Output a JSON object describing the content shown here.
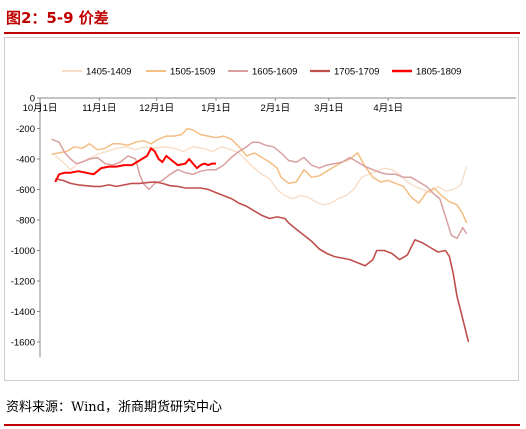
{
  "title": "图2：5-9 价差",
  "source": "资料来源：Wind，浙商期货研究中心",
  "chart_data": {
    "type": "line",
    "title": "图2：5-9 价差",
    "ylim": [
      -1700,
      0
    ],
    "yticks": [
      0,
      -200,
      -400,
      -600,
      -800,
      -1000,
      -1200,
      -1400,
      -1600
    ],
    "ytick_labels": [
      "0",
      "-200",
      "-400",
      "-600",
      "-800",
      "-1000",
      "-1200",
      "-1400",
      "-1600"
    ],
    "x_range": [
      0,
      225
    ],
    "xticks": [
      {
        "label": "10月1日",
        "x": 0
      },
      {
        "label": "11月1日",
        "x": 31
      },
      {
        "label": "12月1日",
        "x": 61
      },
      {
        "label": "1月1日",
        "x": 92
      },
      {
        "label": "2月1日",
        "x": 123
      },
      {
        "label": "3月1日",
        "x": 151
      },
      {
        "label": "4月1日",
        "x": 182
      }
    ],
    "grid": false,
    "legend_position": "top",
    "series": [
      {
        "name": "1405-1409",
        "color": "#f7dcc6",
        "width": 1.3,
        "points": [
          [
            8,
            -380
          ],
          [
            12,
            -420
          ],
          [
            16,
            -470
          ],
          [
            20,
            -430
          ],
          [
            25,
            -400
          ],
          [
            30,
            -370
          ],
          [
            35,
            -350
          ],
          [
            40,
            -330
          ],
          [
            45,
            -320
          ],
          [
            50,
            -340
          ],
          [
            55,
            -320
          ],
          [
            60,
            -330
          ],
          [
            65,
            -320
          ],
          [
            70,
            -330
          ],
          [
            75,
            -350
          ],
          [
            80,
            -320
          ],
          [
            85,
            -330
          ],
          [
            90,
            -350
          ],
          [
            95,
            -320
          ],
          [
            100,
            -340
          ],
          [
            104,
            -360
          ],
          [
            108,
            -410
          ],
          [
            112,
            -460
          ],
          [
            116,
            -500
          ],
          [
            120,
            -530
          ],
          [
            124,
            -600
          ],
          [
            128,
            -640
          ],
          [
            132,
            -660
          ],
          [
            136,
            -640
          ],
          [
            140,
            -650
          ],
          [
            144,
            -680
          ],
          [
            148,
            -700
          ],
          [
            152,
            -690
          ],
          [
            156,
            -660
          ],
          [
            160,
            -640
          ],
          [
            164,
            -600
          ],
          [
            168,
            -520
          ],
          [
            172,
            -500
          ],
          [
            176,
            -480
          ],
          [
            180,
            -460
          ],
          [
            184,
            -470
          ],
          [
            188,
            -500
          ],
          [
            192,
            -550
          ],
          [
            196,
            -580
          ],
          [
            200,
            -600
          ],
          [
            204,
            -620
          ],
          [
            208,
            -580
          ],
          [
            212,
            -610
          ],
          [
            216,
            -600
          ],
          [
            220,
            -570
          ],
          [
            223,
            -450
          ]
        ]
      },
      {
        "name": "1505-1509",
        "color": "#f4be84",
        "width": 1.5,
        "points": [
          [
            6,
            -370
          ],
          [
            10,
            -360
          ],
          [
            14,
            -350
          ],
          [
            18,
            -320
          ],
          [
            22,
            -330
          ],
          [
            26,
            -300
          ],
          [
            30,
            -340
          ],
          [
            34,
            -330
          ],
          [
            38,
            -300
          ],
          [
            42,
            -300
          ],
          [
            46,
            -310
          ],
          [
            50,
            -290
          ],
          [
            54,
            -280
          ],
          [
            58,
            -300
          ],
          [
            62,
            -270
          ],
          [
            66,
            -250
          ],
          [
            70,
            -250
          ],
          [
            74,
            -240
          ],
          [
            77,
            -200
          ],
          [
            80,
            -210
          ],
          [
            84,
            -240
          ],
          [
            88,
            -250
          ],
          [
            92,
            -260
          ],
          [
            96,
            -250
          ],
          [
            100,
            -270
          ],
          [
            104,
            -320
          ],
          [
            108,
            -380
          ],
          [
            112,
            -360
          ],
          [
            116,
            -390
          ],
          [
            120,
            -420
          ],
          [
            124,
            -460
          ],
          [
            126,
            -520
          ],
          [
            130,
            -560
          ],
          [
            134,
            -550
          ],
          [
            138,
            -470
          ],
          [
            142,
            -520
          ],
          [
            146,
            -510
          ],
          [
            150,
            -480
          ],
          [
            154,
            -450
          ],
          [
            158,
            -420
          ],
          [
            162,
            -400
          ],
          [
            166,
            -360
          ],
          [
            170,
            -450
          ],
          [
            174,
            -520
          ],
          [
            178,
            -550
          ],
          [
            182,
            -540
          ],
          [
            186,
            -560
          ],
          [
            190,
            -580
          ],
          [
            194,
            -650
          ],
          [
            198,
            -690
          ],
          [
            202,
            -620
          ],
          [
            206,
            -590
          ],
          [
            210,
            -640
          ],
          [
            214,
            -680
          ],
          [
            218,
            -700
          ],
          [
            221,
            -760
          ],
          [
            223,
            -820
          ]
        ]
      },
      {
        "name": "1605-1609",
        "color": "#d9a0a0",
        "width": 1.5,
        "points": [
          [
            6,
            -270
          ],
          [
            10,
            -290
          ],
          [
            13,
            -360
          ],
          [
            16,
            -400
          ],
          [
            19,
            -430
          ],
          [
            22,
            -420
          ],
          [
            26,
            -400
          ],
          [
            30,
            -390
          ],
          [
            34,
            -430
          ],
          [
            38,
            -440
          ],
          [
            42,
            -420
          ],
          [
            46,
            -380
          ],
          [
            50,
            -400
          ],
          [
            52,
            -500
          ],
          [
            54,
            -560
          ],
          [
            57,
            -600
          ],
          [
            60,
            -560
          ],
          [
            64,
            -540
          ],
          [
            68,
            -500
          ],
          [
            72,
            -470
          ],
          [
            76,
            -490
          ],
          [
            80,
            -500
          ],
          [
            84,
            -480
          ],
          [
            88,
            -470
          ],
          [
            92,
            -470
          ],
          [
            96,
            -440
          ],
          [
            100,
            -390
          ],
          [
            104,
            -350
          ],
          [
            108,
            -320
          ],
          [
            111,
            -290
          ],
          [
            114,
            -290
          ],
          [
            118,
            -310
          ],
          [
            122,
            -320
          ],
          [
            126,
            -360
          ],
          [
            130,
            -410
          ],
          [
            134,
            -420
          ],
          [
            138,
            -390
          ],
          [
            142,
            -440
          ],
          [
            146,
            -460
          ],
          [
            150,
            -440
          ],
          [
            154,
            -430
          ],
          [
            158,
            -420
          ],
          [
            162,
            -390
          ],
          [
            166,
            -420
          ],
          [
            170,
            -450
          ],
          [
            174,
            -470
          ],
          [
            178,
            -490
          ],
          [
            182,
            -500
          ],
          [
            186,
            -500
          ],
          [
            190,
            -520
          ],
          [
            194,
            -520
          ],
          [
            198,
            -550
          ],
          [
            202,
            -580
          ],
          [
            206,
            -630
          ],
          [
            209,
            -660
          ],
          [
            212,
            -780
          ],
          [
            215,
            -900
          ],
          [
            218,
            -920
          ],
          [
            221,
            -850
          ],
          [
            223,
            -890
          ]
        ]
      },
      {
        "name": "1705-1709",
        "color": "#c0504d",
        "width": 1.6,
        "points": [
          [
            8,
            -530
          ],
          [
            12,
            -540
          ],
          [
            16,
            -560
          ],
          [
            20,
            -570
          ],
          [
            24,
            -575
          ],
          [
            28,
            -580
          ],
          [
            32,
            -580
          ],
          [
            36,
            -570
          ],
          [
            40,
            -580
          ],
          [
            44,
            -570
          ],
          [
            48,
            -560
          ],
          [
            52,
            -560
          ],
          [
            56,
            -555
          ],
          [
            60,
            -550
          ],
          [
            64,
            -560
          ],
          [
            68,
            -575
          ],
          [
            72,
            -580
          ],
          [
            76,
            -590
          ],
          [
            80,
            -590
          ],
          [
            84,
            -590
          ],
          [
            88,
            -600
          ],
          [
            92,
            -620
          ],
          [
            96,
            -640
          ],
          [
            100,
            -660
          ],
          [
            104,
            -690
          ],
          [
            108,
            -710
          ],
          [
            112,
            -740
          ],
          [
            116,
            -770
          ],
          [
            120,
            -790
          ],
          [
            124,
            -780
          ],
          [
            128,
            -790
          ],
          [
            130,
            -820
          ],
          [
            134,
            -860
          ],
          [
            138,
            -900
          ],
          [
            142,
            -940
          ],
          [
            146,
            -990
          ],
          [
            150,
            -1020
          ],
          [
            154,
            -1040
          ],
          [
            158,
            -1050
          ],
          [
            162,
            -1060
          ],
          [
            166,
            -1080
          ],
          [
            170,
            -1100
          ],
          [
            174,
            -1060
          ],
          [
            176,
            -1000
          ],
          [
            180,
            -1000
          ],
          [
            184,
            -1020
          ],
          [
            188,
            -1060
          ],
          [
            192,
            -1030
          ],
          [
            196,
            -930
          ],
          [
            200,
            -950
          ],
          [
            204,
            -980
          ],
          [
            208,
            -1010
          ],
          [
            212,
            -1000
          ],
          [
            214,
            -1040
          ],
          [
            216,
            -1150
          ],
          [
            218,
            -1300
          ],
          [
            220,
            -1400
          ],
          [
            222,
            -1500
          ],
          [
            224,
            -1600
          ]
        ]
      },
      {
        "name": "1805-1809",
        "color": "#ff0000",
        "width": 2.0,
        "points": [
          [
            8,
            -550
          ],
          [
            10,
            -500
          ],
          [
            13,
            -490
          ],
          [
            16,
            -490
          ],
          [
            20,
            -480
          ],
          [
            24,
            -490
          ],
          [
            28,
            -500
          ],
          [
            30,
            -480
          ],
          [
            32,
            -460
          ],
          [
            36,
            -450
          ],
          [
            40,
            -450
          ],
          [
            44,
            -440
          ],
          [
            48,
            -440
          ],
          [
            52,
            -410
          ],
          [
            56,
            -380
          ],
          [
            58,
            -330
          ],
          [
            60,
            -350
          ],
          [
            62,
            -400
          ],
          [
            64,
            -420
          ],
          [
            66,
            -380
          ],
          [
            68,
            -400
          ],
          [
            72,
            -440
          ],
          [
            76,
            -430
          ],
          [
            78,
            -400
          ],
          [
            80,
            -430
          ],
          [
            82,
            -460
          ],
          [
            84,
            -440
          ],
          [
            86,
            -430
          ],
          [
            88,
            -440
          ],
          [
            90,
            -430
          ],
          [
            92,
            -430
          ]
        ]
      }
    ]
  }
}
